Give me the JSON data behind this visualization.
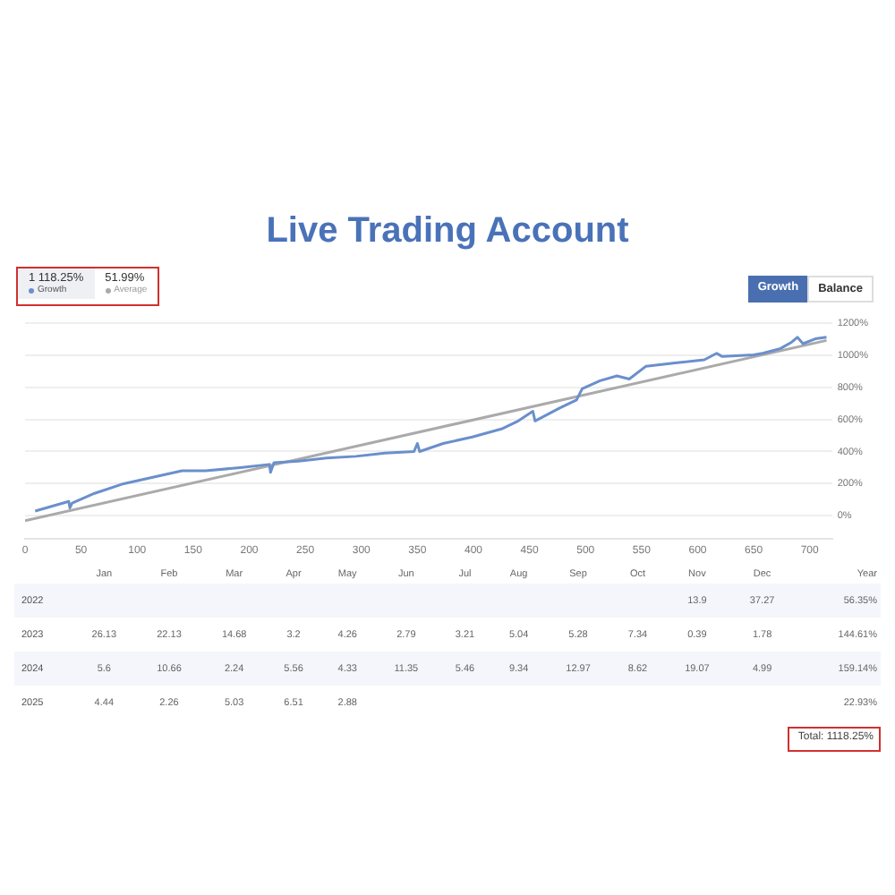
{
  "chart_data": [
    {
      "type": "line",
      "title": "Live Trading Account",
      "legend": "top left",
      "grid": "y",
      "marker": "none",
      "line_style": "solid",
      "xlim": [
        0,
        720
      ],
      "xticks": [
        0,
        50,
        100,
        150,
        200,
        250,
        300,
        350,
        400,
        450,
        500,
        550,
        600,
        650,
        700
      ],
      "ylim": [
        -140,
        1200
      ],
      "yticks": [
        {
          "value": 0,
          "label": "0%"
        },
        {
          "value": 200,
          "label": "200%"
        },
        {
          "value": 400,
          "label": "400%"
        },
        {
          "value": 600,
          "label": "600%"
        },
        {
          "value": 800,
          "label": "800%"
        },
        {
          "value": 1000,
          "label": "1000%"
        },
        {
          "value": 1200,
          "label": "1200%"
        }
      ],
      "annotations": [
        "1 118.25%",
        "51.99%",
        "Growth",
        "Balance"
      ],
      "series": [
        {
          "name": "Growth",
          "color": "#6a8fcc",
          "x": [
            9,
            39,
            40,
            42,
            62,
            88,
            114,
            140,
            161,
            192,
            218,
            219,
            222,
            244,
            269,
            295,
            321,
            347,
            350,
            352,
            373,
            399,
            425,
            440,
            453,
            455,
            477,
            492,
            497,
            513,
            528,
            539,
            554,
            580,
            606,
            617,
            622,
            650,
            658,
            674,
            684,
            689,
            694,
            705,
            715
          ],
          "values": [
            30,
            90,
            50,
            80,
            140,
            200,
            240,
            280,
            280,
            300,
            320,
            270,
            330,
            340,
            360,
            370,
            390,
            400,
            450,
            400,
            450,
            490,
            540,
            590,
            650,
            590,
            670,
            720,
            790,
            840,
            870,
            850,
            930,
            950,
            970,
            1010,
            990,
            1000,
            1010,
            1040,
            1080,
            1110,
            1070,
            1100,
            1110
          ]
        },
        {
          "name": "Average",
          "color": "#aaaaaa",
          "x": [
            0,
            715
          ],
          "values": [
            -30,
            1090
          ]
        }
      ]
    },
    {
      "type": "heatmap",
      "categories": [
        "Jan",
        "Feb",
        "Mar",
        "Apr",
        "May",
        "Jun",
        "Jul",
        "Aug",
        "Sep",
        "Oct",
        "Nov",
        "Dec"
      ],
      "y_categories": [
        "2022",
        "2023",
        "2024",
        "2025"
      ],
      "y2_categories": [
        "56.35%",
        "144.61%",
        "159.14%",
        "22.93%"
      ],
      "data_labels": true,
      "cells": [
        [
          null,
          null,
          null,
          null,
          null,
          null,
          null,
          null,
          null,
          null,
          13.9,
          37.27
        ],
        [
          26.13,
          22.13,
          14.68,
          3.2,
          4.26,
          2.79,
          3.21,
          5.04,
          5.28,
          7.34,
          0.39,
          1.78
        ],
        [
          5.6,
          10.66,
          2.24,
          5.56,
          4.33,
          11.35,
          5.46,
          9.34,
          12.97,
          8.62,
          19.07,
          4.99
        ],
        [
          4.44,
          2.26,
          5.03,
          6.51,
          2.88,
          null,
          null,
          null,
          null,
          null,
          null,
          null
        ]
      ],
      "annotations": [
        "Total: 1118.25%",
        "Year"
      ]
    }
  ]
}
